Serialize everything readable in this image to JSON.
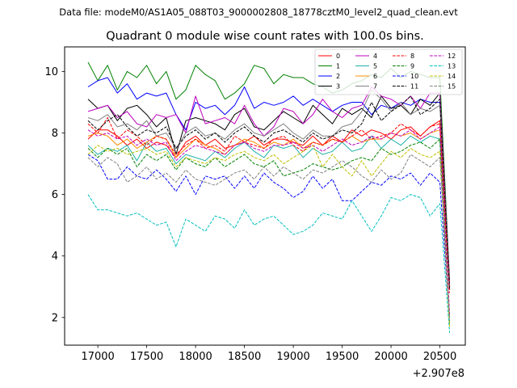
{
  "figure": {
    "suptitle": "Data file: modeM0/AS1A05_088T03_9000002808_18778cztM0_level2_quad_clean.evt",
    "offset_label": "+2.907e8"
  },
  "chart_data": {
    "type": "line",
    "title": "Quadrant 0 module wise count rates with 100.0s bins.",
    "xlabel": "",
    "ylabel": "",
    "xlim": [
      16660,
      20760
    ],
    "ylim": [
      1.1,
      10.8
    ],
    "xticks": [
      17000,
      17500,
      18000,
      18500,
      19000,
      19500,
      20000,
      20500
    ],
    "yticks": [
      2,
      4,
      6,
      8,
      10
    ],
    "x": [
      16900,
      17000,
      17100,
      17200,
      17300,
      17400,
      17500,
      17600,
      17700,
      17800,
      17900,
      18000,
      18100,
      18200,
      18300,
      18400,
      18500,
      18600,
      18700,
      18800,
      18900,
      19000,
      19100,
      19200,
      19300,
      19400,
      19500,
      19600,
      19700,
      19800,
      19900,
      20000,
      20100,
      20200,
      20300,
      20400,
      20500,
      20600
    ],
    "legend": {
      "placement": "top-right",
      "columns": 4
    },
    "series": [
      {
        "name": "0",
        "color": "#ff0000",
        "style": "solid",
        "values": [
          7.8,
          8.1,
          8.1,
          7.9,
          7.6,
          7.8,
          7.5,
          7.7,
          7.6,
          7.2,
          7.7,
          7.9,
          7.6,
          7.8,
          7.5,
          7.6,
          7.7,
          7.9,
          7.6,
          7.8,
          7.8,
          7.7,
          7.6,
          7.9,
          7.6,
          7.9,
          7.7,
          8.1,
          7.9,
          8.1,
          8.0,
          7.8,
          8.1,
          8.2,
          7.9,
          8.2,
          8.4,
          3.0
        ]
      },
      {
        "name": "1",
        "color": "#008000",
        "style": "solid",
        "values": [
          10.3,
          9.7,
          10.2,
          9.4,
          10.0,
          9.8,
          10.2,
          9.6,
          10.0,
          9.1,
          9.4,
          10.2,
          9.9,
          9.7,
          9.1,
          9.3,
          9.6,
          10.2,
          10.1,
          9.6,
          9.9,
          9.8,
          9.8,
          9.6,
          9.5,
          9.3,
          9.4,
          9.6,
          9.7,
          9.9,
          9.8,
          10.1,
          9.8,
          10.0,
          9.9,
          9.8,
          9.8,
          3.2
        ]
      },
      {
        "name": "2",
        "color": "#0000ff",
        "style": "solid",
        "values": [
          9.5,
          9.7,
          9.8,
          9.3,
          9.6,
          9.1,
          9.3,
          9.2,
          9.3,
          8.6,
          8.1,
          9.0,
          8.8,
          8.9,
          8.6,
          8.9,
          9.5,
          8.8,
          9.0,
          8.9,
          9.0,
          9.2,
          8.9,
          9.1,
          8.9,
          8.7,
          8.9,
          9.0,
          9.0,
          8.6,
          8.9,
          8.8,
          9.0,
          8.9,
          9.1,
          9.0,
          9.0,
          3.1
        ]
      },
      {
        "name": "3",
        "color": "#000000",
        "style": "solid",
        "values": [
          9.1,
          8.8,
          8.9,
          8.4,
          8.8,
          8.9,
          8.6,
          8.2,
          8.5,
          7.3,
          8.4,
          8.5,
          8.4,
          8.3,
          8.1,
          8.6,
          8.8,
          8.2,
          8.1,
          8.4,
          8.7,
          8.5,
          8.3,
          8.9,
          8.6,
          8.3,
          8.8,
          8.6,
          8.8,
          8.5,
          9.2,
          8.8,
          8.9,
          8.6,
          9.1,
          8.9,
          9.3,
          3.0
        ]
      },
      {
        "name": "4",
        "color": "#bf00bf",
        "style": "solid",
        "values": [
          8.7,
          8.8,
          8.9,
          8.5,
          8.7,
          8.3,
          8.2,
          8.6,
          8.5,
          8.6,
          8.0,
          9.2,
          8.3,
          8.4,
          8.5,
          8.3,
          8.9,
          8.3,
          7.9,
          8.2,
          8.8,
          8.7,
          8.3,
          8.6,
          9.1,
          8.7,
          8.5,
          8.8,
          8.9,
          9.5,
          9.2,
          9.1,
          8.9,
          9.2,
          8.8,
          9.3,
          9.3,
          3.1
        ]
      },
      {
        "name": "5",
        "color": "#20b2aa",
        "style": "solid",
        "values": [
          7.6,
          7.3,
          7.5,
          7.4,
          7.6,
          7.1,
          7.7,
          7.4,
          7.5,
          7.0,
          7.3,
          7.2,
          7.1,
          7.4,
          7.2,
          7.5,
          7.7,
          7.4,
          7.2,
          7.6,
          7.5,
          7.6,
          7.2,
          7.5,
          7.3,
          7.4,
          7.7,
          7.4,
          7.5,
          7.9,
          7.5,
          7.8,
          7.6,
          7.9,
          7.7,
          7.9,
          7.8,
          2.9
        ]
      },
      {
        "name": "6",
        "color": "#ff8c00",
        "style": "solid",
        "values": [
          7.9,
          8.0,
          7.9,
          7.6,
          7.8,
          7.5,
          7.7,
          7.9,
          7.8,
          7.2,
          7.5,
          7.8,
          7.6,
          7.5,
          7.3,
          7.6,
          7.8,
          7.7,
          7.5,
          7.7,
          7.6,
          7.8,
          7.5,
          7.7,
          7.6,
          7.8,
          7.7,
          7.9,
          7.7,
          7.8,
          7.8,
          8.0,
          7.9,
          8.0,
          7.8,
          8.0,
          8.1,
          2.9
        ]
      },
      {
        "name": "7",
        "color": "#808080",
        "style": "solid",
        "values": [
          8.5,
          8.4,
          8.6,
          8.2,
          8.3,
          8.1,
          8.4,
          7.9,
          8.0,
          7.5,
          8.0,
          8.2,
          7.9,
          8.0,
          7.8,
          8.1,
          8.3,
          8.0,
          7.9,
          8.1,
          8.3,
          8.0,
          7.8,
          8.1,
          7.9,
          7.9,
          8.2,
          8.3,
          8.7,
          9.4,
          9.1,
          8.7,
          9.0,
          8.6,
          8.8,
          8.7,
          8.9,
          3.0
        ]
      },
      {
        "name": "8",
        "color": "#ff0000",
        "style": "dashed",
        "values": [
          8.3,
          8.0,
          8.5,
          7.8,
          8.1,
          7.9,
          7.6,
          7.9,
          7.8,
          7.3,
          7.6,
          7.8,
          7.5,
          7.6,
          7.4,
          7.9,
          7.7,
          7.6,
          7.5,
          7.8,
          7.9,
          7.6,
          7.4,
          7.7,
          7.6,
          7.8,
          7.7,
          7.9,
          8.1,
          7.8,
          7.9,
          8.0,
          8.3,
          8.1,
          7.9,
          8.2,
          8.3,
          2.8
        ]
      },
      {
        "name": "9",
        "color": "#008000",
        "style": "dashed",
        "values": [
          7.5,
          7.2,
          7.5,
          7.3,
          7.5,
          6.9,
          7.3,
          7.1,
          7.3,
          6.8,
          7.2,
          7.0,
          6.9,
          7.2,
          6.9,
          7.1,
          7.3,
          7.0,
          6.9,
          7.1,
          6.6,
          6.7,
          6.8,
          7.0,
          6.9,
          6.8,
          6.9,
          7.1,
          7.2,
          7.1,
          7.5,
          7.3,
          7.4,
          7.6,
          7.7,
          7.5,
          7.8,
          1.8
        ]
      },
      {
        "name": "10",
        "color": "#0000ff",
        "style": "dashed",
        "values": [
          7.3,
          7.1,
          6.5,
          6.5,
          6.9,
          6.6,
          6.5,
          6.8,
          6.5,
          6.1,
          6.6,
          6.0,
          6.6,
          6.5,
          6.6,
          6.2,
          6.6,
          6.2,
          6.7,
          6.4,
          6.2,
          5.9,
          6.1,
          6.6,
          6.2,
          6.5,
          5.8,
          5.8,
          6.1,
          6.4,
          6.3,
          6.6,
          6.5,
          6.7,
          6.3,
          6.7,
          6.4,
          1.9
        ]
      },
      {
        "name": "11",
        "color": "#000000",
        "style": "dashed",
        "values": [
          8.4,
          8.1,
          8.4,
          8.6,
          8.2,
          7.9,
          8.1,
          8.0,
          8.2,
          7.5,
          7.9,
          8.1,
          7.8,
          8.0,
          7.7,
          8.0,
          8.2,
          7.9,
          7.7,
          8.0,
          8.1,
          7.9,
          7.7,
          8.0,
          7.8,
          7.9,
          8.1,
          8.0,
          8.3,
          9.0,
          8.4,
          8.7,
          8.9,
          9.2,
          8.6,
          8.8,
          9.1,
          2.9
        ]
      },
      {
        "name": "12",
        "color": "#bf00bf",
        "style": "dashed",
        "values": [
          8.1,
          7.9,
          8.0,
          7.8,
          7.9,
          7.6,
          7.8,
          7.6,
          7.7,
          7.1,
          7.4,
          7.6,
          7.5,
          7.4,
          7.3,
          7.6,
          7.7,
          7.5,
          7.4,
          7.6,
          7.6,
          7.7,
          7.5,
          7.6,
          7.4,
          7.6,
          7.8,
          7.6,
          7.7,
          7.9,
          7.8,
          8.0,
          7.9,
          8.1,
          7.8,
          8.0,
          8.2,
          2.1
        ]
      },
      {
        "name": "13",
        "color": "#00bfbf",
        "style": "dashed",
        "values": [
          6.0,
          5.5,
          5.5,
          5.4,
          5.3,
          5.4,
          5.2,
          5.0,
          5.1,
          4.3,
          5.2,
          5.0,
          4.8,
          5.3,
          5.2,
          4.9,
          5.5,
          5.0,
          5.2,
          5.3,
          5.0,
          4.7,
          4.8,
          5.0,
          5.4,
          5.3,
          5.2,
          5.8,
          5.3,
          4.8,
          5.3,
          5.9,
          5.8,
          6.0,
          5.9,
          5.3,
          5.7,
          1.5
        ]
      },
      {
        "name": "14",
        "color": "#bfbf00",
        "style": "dashed",
        "values": [
          7.3,
          7.6,
          7.4,
          7.5,
          7.3,
          7.4,
          7.5,
          7.3,
          7.4,
          6.9,
          7.2,
          7.1,
          7.0,
          7.2,
          7.1,
          7.3,
          7.4,
          7.2,
          7.1,
          7.3,
          7.0,
          7.2,
          7.4,
          7.6,
          6.9,
          7.3,
          6.9,
          6.6,
          7.1,
          6.6,
          7.0,
          7.4,
          7.2,
          7.5,
          7.3,
          7.2,
          7.4,
          1.7
        ]
      },
      {
        "name": "15",
        "color": "#808080",
        "style": "dashed",
        "values": [
          7.2,
          6.9,
          7.2,
          7.0,
          6.4,
          6.6,
          6.9,
          6.5,
          6.7,
          6.4,
          6.8,
          6.5,
          6.4,
          6.3,
          6.5,
          6.7,
          6.8,
          6.5,
          6.9,
          6.6,
          6.9,
          6.7,
          6.5,
          6.8,
          6.7,
          6.9,
          7.1,
          6.9,
          6.6,
          6.4,
          6.8,
          6.5,
          6.7,
          7.3,
          7.1,
          6.9,
          7.2,
          2.0
        ]
      }
    ]
  }
}
